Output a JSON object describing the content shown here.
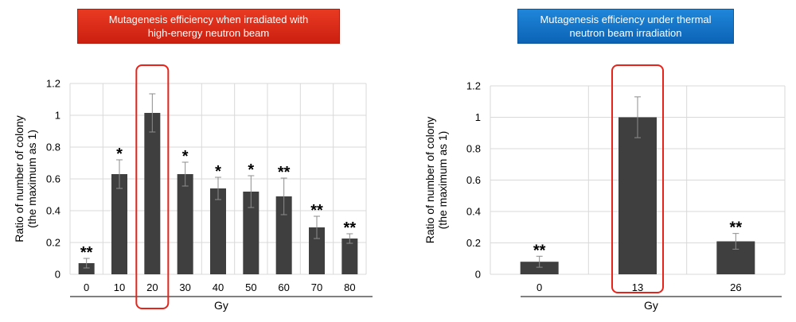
{
  "colors": {
    "bar": "#3f3f3f",
    "grid": "#d9d9d9",
    "highlight": "#e8231a",
    "banner_left": "#d9261a",
    "banner_right": "#0f6fc6"
  },
  "chart_data": [
    {
      "type": "bar",
      "title": "Mutagenesis efficiency when irradiated with high-energy neutron beam",
      "title_lines": [
        "Mutagenesis efficiency when irradiated with",
        "high-energy neutron beam"
      ],
      "ylabel_lines": [
        "Ratio of number of colony",
        "(the maximum as 1)"
      ],
      "xlabel": "Gy",
      "categories": [
        "0",
        "10",
        "20",
        "30",
        "40",
        "50",
        "60",
        "70",
        "80"
      ],
      "values": [
        0.07,
        0.63,
        1.015,
        0.63,
        0.54,
        0.52,
        0.49,
        0.295,
        0.225
      ],
      "errors": [
        0.03,
        0.09,
        0.12,
        0.075,
        0.07,
        0.1,
        0.115,
        0.07,
        0.03
      ],
      "significance": [
        "**",
        "*",
        "",
        "*",
        "*",
        "*",
        "**",
        "**",
        "**"
      ],
      "ylim": [
        0,
        1.2
      ],
      "yticks": [
        "0",
        "0.2",
        "0.4",
        "0.6",
        "0.8",
        "1",
        "1.2"
      ],
      "highlight_index": 2,
      "grid": true
    },
    {
      "type": "bar",
      "title": "Mutagenesis efficiency under thermal neutron beam irradiation",
      "title_lines": [
        "Mutagenesis efficiency under thermal",
        "neutron beam irradiation"
      ],
      "ylabel_lines": [
        "Ratio of number of colony",
        "(the maximum as 1)"
      ],
      "xlabel": "Gy",
      "categories": [
        "0",
        "13",
        "26"
      ],
      "values": [
        0.08,
        1.0,
        0.21
      ],
      "errors": [
        0.035,
        0.13,
        0.05
      ],
      "significance": [
        "**",
        "",
        "**"
      ],
      "ylim": [
        0,
        1.2
      ],
      "yticks": [
        "0",
        "0.2",
        "0.4",
        "0.6",
        "0.8",
        "1",
        "1.2"
      ],
      "highlight_index": 1,
      "grid": true
    }
  ]
}
